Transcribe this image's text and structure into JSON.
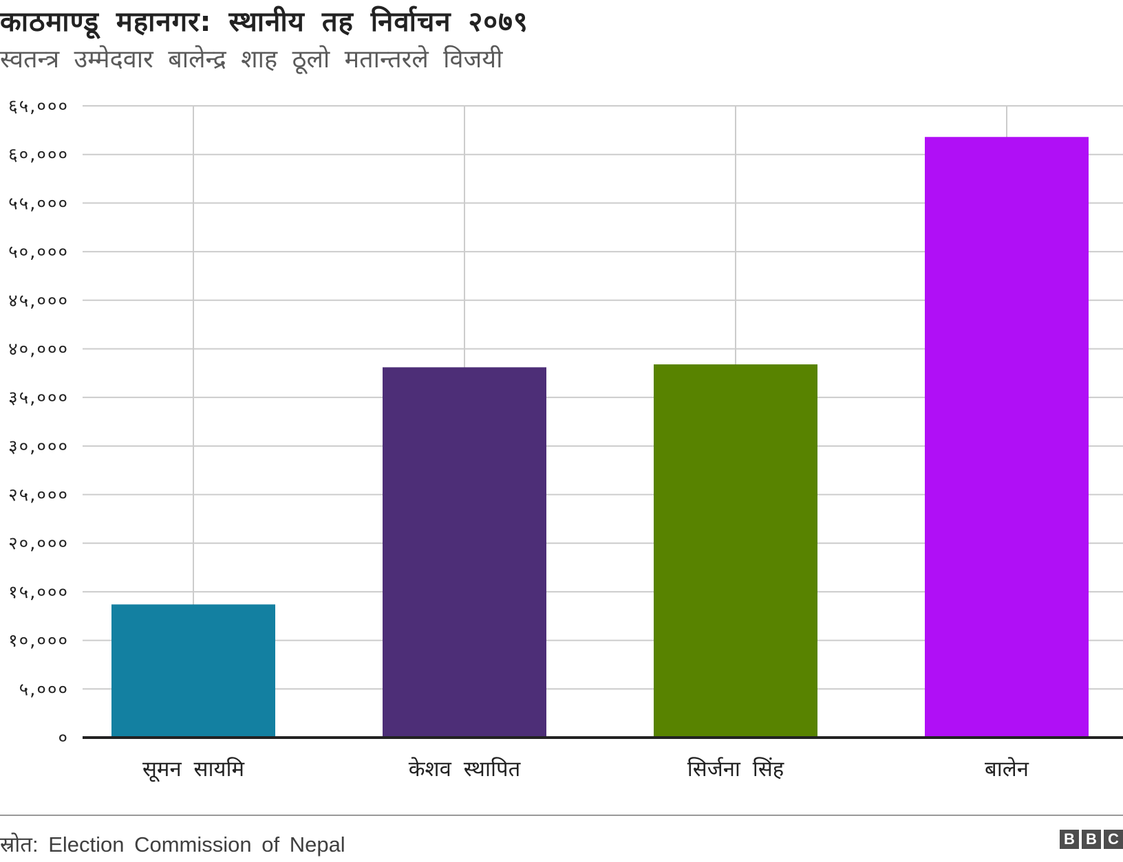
{
  "chart_data": {
    "type": "bar",
    "title": "काठमाण्डू महानगर: स्थानीय तह निर्वाचन २०७९",
    "subtitle": "स्वतन्त्र उम्मेदवार बालेन्द्र शाह ठूलो मतान्तरले विजयी",
    "categories": [
      "सूमन सायमि",
      "केशव स्थापित",
      "सिर्जना सिंह",
      "बालेन"
    ],
    "values": [
      13700,
      38100,
      38400,
      61800
    ],
    "colors": [
      "#1380a1",
      "#4d2e77",
      "#588300",
      "#b00ff6"
    ],
    "ylim": [
      0,
      65000
    ],
    "yticks": [
      0,
      5000,
      10000,
      15000,
      20000,
      25000,
      30000,
      35000,
      40000,
      45000,
      50000,
      55000,
      60000,
      65000
    ],
    "ytick_labels": [
      "०",
      "५,०००",
      "१०,०००",
      "१५,०००",
      "२०,०००",
      "२५,०००",
      "३०,०००",
      "३५,०००",
      "४०,०००",
      "४५,०००",
      "५०,०००",
      "५५,०००",
      "६०,०००",
      "६५,०००"
    ],
    "xlabel": "",
    "ylabel": "",
    "grid": true
  },
  "footer": {
    "source": "स्रोत: Election Commission of Nepal",
    "logo": "BBC"
  }
}
